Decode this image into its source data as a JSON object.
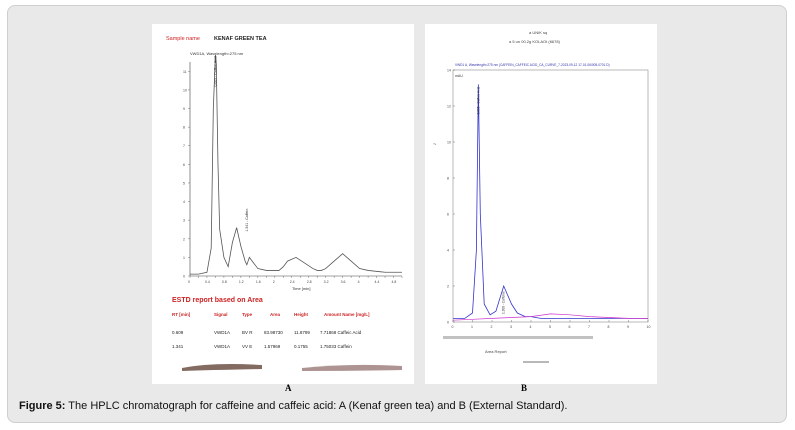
{
  "panel_a": {
    "sample_label": "Sample name",
    "sample_value": "KENAF GREEN TEA",
    "signal_label": "VWD1A, Wavelength=275 nm",
    "xlabel": "Time [min]",
    "peak_labels": [
      "0.609 - Caffeic Acid",
      "1.341 - Caffein"
    ],
    "report_title": "ESTD report based on Area",
    "table": {
      "headers": [
        "RT [min]",
        "Signal",
        "Type",
        "Area",
        "Height",
        "Amount Name [mg/L]"
      ],
      "rows": [
        [
          "0.609",
          "VWD1A",
          "BV R",
          "83.98730",
          "11.8799",
          "7.71868 Caffeic Acid"
        ],
        [
          "1.341",
          "VWD1A",
          "VV E",
          "1.57969",
          "0.1755",
          "1.75033 Caffein"
        ]
      ]
    },
    "panel_letter": "A"
  },
  "panel_b": {
    "title_line1": "a UNIK sq",
    "title_line2": "a 5 un 00.2g KOLAOt (6678)",
    "header": "VWD1 A, Wavelength=275 nm (CAFFEIN_CAFFEIC ACID_CA_CURVE_7-2023-09-12 17-01-06\\005-0701.D)",
    "yunit": "mAU",
    "peak_labels": [
      "0.635 - Caffeic Acid",
      "1.308 - Caffeine"
    ],
    "report_label": "Area Report",
    "panel_letter": "B"
  },
  "caption": {
    "label": "Figure 5:",
    "text": " The HPLC chromatograph for caffeine and caffeic acid: A (Kenaf green tea) and B (External Standard)."
  },
  "chart_data": [
    {
      "type": "line",
      "panel": "A",
      "xlabel": "Time [min]",
      "xlim": [
        0,
        5
      ],
      "ylim": [
        0,
        11.5
      ],
      "x": [
        0.0,
        0.2,
        0.4,
        0.5,
        0.55,
        0.6,
        0.62,
        0.66,
        0.7,
        0.8,
        0.9,
        1.0,
        1.1,
        1.2,
        1.3,
        1.34,
        1.4,
        1.5,
        1.6,
        1.8,
        2.0,
        2.1,
        2.2,
        2.3,
        2.5,
        2.7,
        2.9,
        3.0,
        3.1,
        3.2,
        3.4,
        3.6,
        3.8,
        4.0,
        4.2,
        4.6,
        5.0
      ],
      "y": [
        0.1,
        0.1,
        0.2,
        1.5,
        9.0,
        11.9,
        11.4,
        6.0,
        2.5,
        1.0,
        0.5,
        1.8,
        2.6,
        1.6,
        0.8,
        0.6,
        1.0,
        0.7,
        0.4,
        0.3,
        0.3,
        0.3,
        0.5,
        0.8,
        1.0,
        0.7,
        0.4,
        0.3,
        0.3,
        0.4,
        0.8,
        1.2,
        0.8,
        0.4,
        0.3,
        0.2,
        0.2
      ]
    },
    {
      "type": "line",
      "panel": "B",
      "xlim": [
        0,
        10
      ],
      "ylim": [
        0,
        14
      ],
      "series": [
        {
          "color": "#3333cc",
          "x": [
            0,
            0.6,
            1.0,
            1.2,
            1.3,
            1.4,
            1.6,
            1.9,
            2.2,
            2.6,
            3.0,
            3.3,
            3.7,
            4.0,
            4.5,
            5.0,
            6.0,
            7.0,
            8.0,
            9.0,
            10.0
          ],
          "y": [
            0.2,
            0.2,
            0.5,
            4.0,
            13.2,
            6.0,
            1.0,
            0.4,
            0.6,
            2.0,
            1.0,
            0.5,
            0.3,
            0.3,
            0.2,
            0.2,
            0.2,
            0.2,
            0.2,
            0.2,
            0.2
          ]
        },
        {
          "color": "#cc33cc",
          "x": [
            0,
            1.0,
            2.0,
            3.0,
            4.0,
            5.0,
            6.0,
            7.0,
            8.0,
            9.0,
            10.0
          ],
          "y": [
            0.1,
            0.15,
            0.2,
            0.25,
            0.3,
            0.45,
            0.4,
            0.3,
            0.25,
            0.2,
            0.2
          ]
        }
      ]
    }
  ]
}
